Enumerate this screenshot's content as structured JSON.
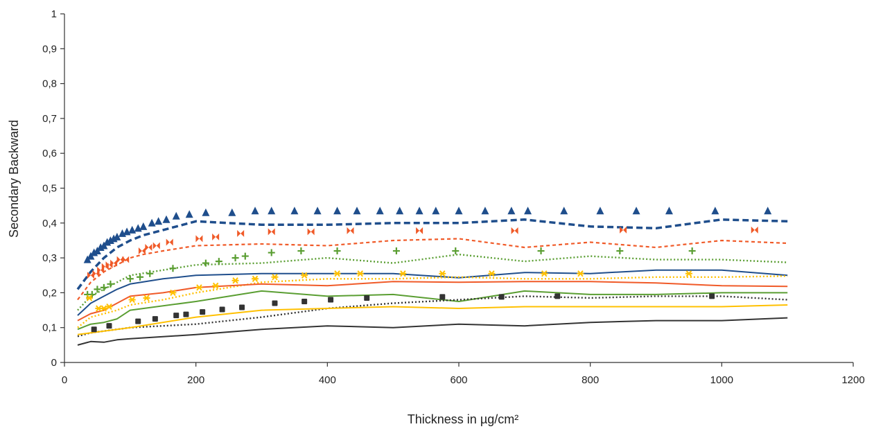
{
  "chart_data": {
    "type": "line",
    "title": "",
    "xlabel": "Thickness in µg/cm²",
    "ylabel": "Secondary Backward",
    "xlim": [
      0,
      1200
    ],
    "ylim": [
      0,
      1
    ],
    "xticks": [
      0,
      200,
      400,
      600,
      800,
      1000,
      1200
    ],
    "xtick_labels": [
      "0",
      "200",
      "400",
      "600",
      "800",
      "1000",
      "1200"
    ],
    "yticks": [
      0,
      0.1,
      0.2,
      0.3,
      0.4,
      0.5,
      0.6,
      0.7,
      0.8,
      0.9,
      1
    ],
    "ytick_labels": [
      "0",
      "0,1",
      "0,2",
      "0,3",
      "0,4",
      "0,5",
      "0,6",
      "0,7",
      "0,8",
      "0,9",
      "1"
    ],
    "grid": false,
    "legend": "none",
    "series": [
      {
        "kind": "line",
        "style": "dashed-thick",
        "color": "#1f4e8c",
        "x": [
          20,
          40,
          60,
          80,
          100,
          120,
          150,
          200,
          300,
          400,
          500,
          600,
          700,
          800,
          900,
          1000,
          1100
        ],
        "y": [
          0.21,
          0.26,
          0.3,
          0.33,
          0.35,
          0.365,
          0.38,
          0.405,
          0.395,
          0.395,
          0.4,
          0.4,
          0.41,
          0.39,
          0.385,
          0.41,
          0.405
        ]
      },
      {
        "kind": "line",
        "style": "dashed",
        "color": "#f05a28",
        "x": [
          20,
          40,
          60,
          80,
          100,
          120,
          150,
          200,
          300,
          400,
          500,
          600,
          700,
          800,
          900,
          1000,
          1100
        ],
        "y": [
          0.18,
          0.23,
          0.26,
          0.28,
          0.3,
          0.31,
          0.32,
          0.335,
          0.34,
          0.335,
          0.35,
          0.355,
          0.33,
          0.345,
          0.33,
          0.35,
          0.342
        ]
      },
      {
        "kind": "line",
        "style": "dotted",
        "color": "#5a9e32",
        "x": [
          20,
          40,
          60,
          80,
          100,
          150,
          200,
          300,
          400,
          500,
          600,
          700,
          800,
          900,
          1000,
          1100
        ],
        "y": [
          0.15,
          0.19,
          0.21,
          0.23,
          0.25,
          0.265,
          0.28,
          0.285,
          0.3,
          0.285,
          0.31,
          0.29,
          0.305,
          0.295,
          0.295,
          0.287
        ]
      },
      {
        "kind": "line",
        "style": "solid",
        "color": "#1f4e8c",
        "x": [
          20,
          40,
          60,
          80,
          100,
          150,
          200,
          300,
          400,
          500,
          600,
          700,
          800,
          900,
          1000,
          1100
        ],
        "y": [
          0.135,
          0.17,
          0.19,
          0.21,
          0.225,
          0.24,
          0.25,
          0.255,
          0.255,
          0.255,
          0.243,
          0.258,
          0.255,
          0.265,
          0.265,
          0.25
        ]
      },
      {
        "kind": "line",
        "style": "dotted",
        "color": "#ffc000",
        "x": [
          20,
          40,
          60,
          80,
          100,
          150,
          200,
          300,
          400,
          500,
          600,
          700,
          800,
          900,
          1000,
          1100
        ],
        "y": [
          0.1,
          0.13,
          0.14,
          0.15,
          0.165,
          0.18,
          0.2,
          0.23,
          0.24,
          0.24,
          0.245,
          0.24,
          0.24,
          0.245,
          0.245,
          0.248
        ]
      },
      {
        "kind": "line",
        "style": "solid",
        "color": "#f05a28",
        "x": [
          20,
          40,
          60,
          80,
          100,
          150,
          200,
          300,
          400,
          500,
          600,
          700,
          800,
          900,
          1000,
          1100
        ],
        "y": [
          0.12,
          0.14,
          0.15,
          0.17,
          0.19,
          0.2,
          0.215,
          0.225,
          0.22,
          0.232,
          0.23,
          0.232,
          0.232,
          0.228,
          0.22,
          0.218
        ]
      },
      {
        "kind": "line",
        "style": "solid",
        "color": "#5a9e32",
        "x": [
          20,
          40,
          60,
          80,
          100,
          200,
          300,
          400,
          500,
          600,
          700,
          800,
          900,
          1000,
          1100
        ],
        "y": [
          0.095,
          0.11,
          0.115,
          0.125,
          0.15,
          0.175,
          0.205,
          0.19,
          0.195,
          0.175,
          0.205,
          0.195,
          0.195,
          0.2,
          0.2
        ]
      },
      {
        "kind": "line",
        "style": "dotted",
        "color": "#333333",
        "x": [
          20,
          40,
          60,
          80,
          100,
          200,
          300,
          400,
          500,
          600,
          700,
          800,
          900,
          1000,
          1100
        ],
        "y": [
          0.075,
          0.085,
          0.09,
          0.095,
          0.1,
          0.11,
          0.13,
          0.155,
          0.17,
          0.18,
          0.19,
          0.185,
          0.19,
          0.19,
          0.18
        ]
      },
      {
        "kind": "line",
        "style": "solid",
        "color": "#ffc000",
        "x": [
          20,
          40,
          60,
          80,
          100,
          200,
          300,
          400,
          500,
          600,
          700,
          800,
          900,
          1000,
          1100
        ],
        "y": [
          0.08,
          0.085,
          0.09,
          0.095,
          0.1,
          0.13,
          0.15,
          0.155,
          0.16,
          0.155,
          0.16,
          0.16,
          0.16,
          0.16,
          0.165
        ]
      },
      {
        "kind": "line",
        "style": "solid",
        "color": "#333333",
        "x": [
          20,
          40,
          60,
          80,
          100,
          200,
          300,
          400,
          500,
          600,
          700,
          800,
          900,
          1000,
          1100
        ],
        "y": [
          0.05,
          0.06,
          0.058,
          0.065,
          0.068,
          0.08,
          0.095,
          0.105,
          0.1,
          0.11,
          0.105,
          0.115,
          0.12,
          0.12,
          0.128
        ]
      },
      {
        "kind": "scatter",
        "marker": "triangle",
        "color": "#1f4e8c",
        "x": [
          35,
          40,
          45,
          50,
          55,
          60,
          65,
          70,
          75,
          80,
          88,
          95,
          103,
          112,
          120,
          133,
          143,
          155,
          170,
          190,
          215,
          255,
          290,
          315,
          350,
          385,
          415,
          445,
          480,
          510,
          540,
          565,
          600,
          640,
          680,
          705,
          760,
          815,
          870,
          920,
          990,
          1070
        ],
        "y": [
          0.295,
          0.305,
          0.315,
          0.32,
          0.33,
          0.335,
          0.345,
          0.35,
          0.355,
          0.36,
          0.37,
          0.375,
          0.38,
          0.385,
          0.39,
          0.4,
          0.405,
          0.41,
          0.42,
          0.425,
          0.43,
          0.43,
          0.435,
          0.435,
          0.435,
          0.435,
          0.435,
          0.435,
          0.435,
          0.435,
          0.435,
          0.435,
          0.435,
          0.435,
          0.435,
          0.435,
          0.435,
          0.435,
          0.435,
          0.435,
          0.435,
          0.435
        ]
      },
      {
        "kind": "scatter",
        "marker": "bowtie",
        "color": "#f05a28",
        "x": [
          40,
          48,
          55,
          62,
          68,
          75,
          85,
          93,
          118,
          128,
          140,
          160,
          205,
          230,
          268,
          315,
          375,
          435,
          540,
          685,
          850,
          1050
        ],
        "y": [
          0.25,
          0.255,
          0.265,
          0.275,
          0.28,
          0.285,
          0.295,
          0.295,
          0.32,
          0.33,
          0.335,
          0.345,
          0.355,
          0.36,
          0.37,
          0.375,
          0.375,
          0.378,
          0.378,
          0.378,
          0.38,
          0.38
        ]
      },
      {
        "kind": "scatter",
        "marker": "plus",
        "color": "#5a9e32",
        "x": [
          35,
          42,
          50,
          60,
          70,
          100,
          115,
          130,
          165,
          215,
          235,
          260,
          275,
          315,
          360,
          415,
          505,
          595,
          725,
          845,
          955
        ],
        "y": [
          0.195,
          0.195,
          0.21,
          0.215,
          0.225,
          0.24,
          0.245,
          0.255,
          0.27,
          0.285,
          0.29,
          0.3,
          0.305,
          0.315,
          0.32,
          0.32,
          0.32,
          0.32,
          0.32,
          0.32,
          0.32
        ]
      },
      {
        "kind": "scatter",
        "marker": "star",
        "color": "#ffc000",
        "x": [
          38,
          52,
          60,
          68,
          103,
          125,
          165,
          205,
          230,
          260,
          290,
          320,
          365,
          415,
          450,
          515,
          575,
          650,
          730,
          785,
          950
        ],
        "y": [
          0.185,
          0.155,
          0.155,
          0.16,
          0.18,
          0.185,
          0.2,
          0.215,
          0.22,
          0.235,
          0.24,
          0.245,
          0.25,
          0.255,
          0.255,
          0.255,
          0.255,
          0.255,
          0.255,
          0.255,
          0.255
        ]
      },
      {
        "kind": "scatter",
        "marker": "square",
        "color": "#333333",
        "x": [
          45,
          68,
          112,
          138,
          170,
          185,
          210,
          240,
          270,
          320,
          365,
          405,
          460,
          575,
          665,
          750,
          985
        ],
        "y": [
          0.095,
          0.105,
          0.118,
          0.125,
          0.135,
          0.138,
          0.145,
          0.152,
          0.158,
          0.17,
          0.175,
          0.18,
          0.185,
          0.188,
          0.188,
          0.19,
          0.19
        ]
      }
    ]
  }
}
